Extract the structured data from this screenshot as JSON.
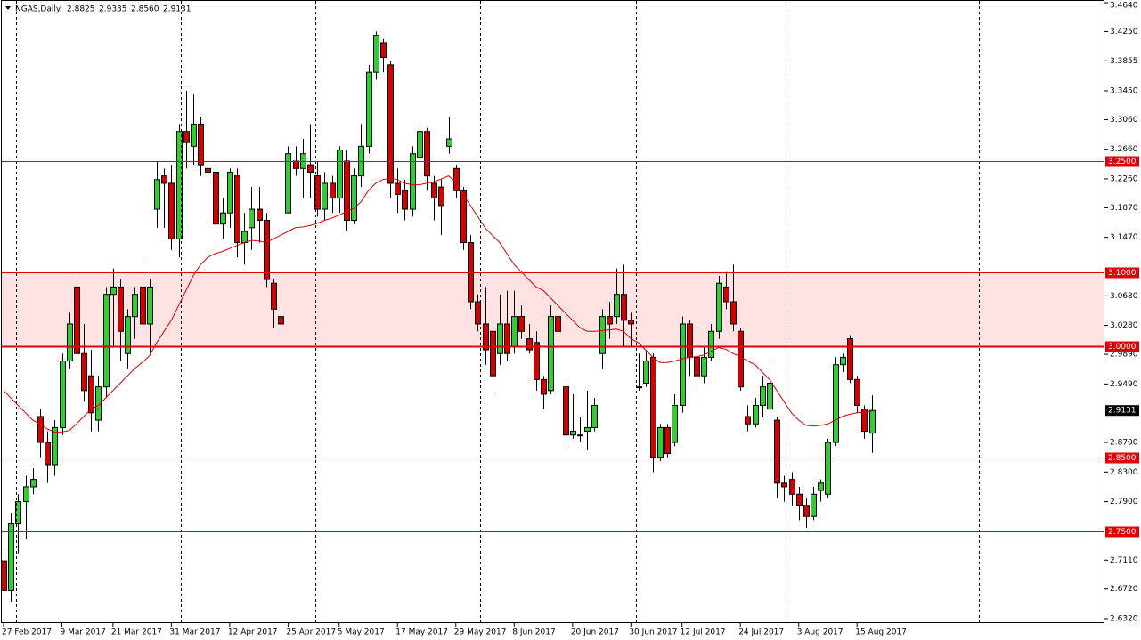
{
  "chart_data": {
    "type": "candlestick",
    "title": "NGAS,Daily",
    "header_values": [
      "2.8825",
      "2.9335",
      "2.8560",
      "2.9131"
    ],
    "bull_color": "#32cd32",
    "bear_color": "#d40000",
    "ma_color": "#e00000",
    "level_color": "#e00000",
    "zone_color": "#ffe2e2",
    "open": [
      2.71,
      2.67,
      2.76,
      2.79,
      2.81,
      2.905,
      2.87,
      2.84,
      2.89,
      2.98,
      3.08,
      2.99,
      2.96,
      2.9,
      2.945,
      3.07,
      3.08,
      2.99,
      3.04,
      3.08,
      3.03,
      3.185,
      3.23,
      3.22,
      3.145,
      3.29,
      3.27,
      3.3,
      3.24,
      3.235,
      3.165,
      3.18,
      3.23,
      3.14,
      3.16,
      3.185,
      3.17,
      3.085,
      3.04,
      3.18,
      3.25,
      3.24,
      3.245,
      3.23,
      3.185,
      3.22,
      3.2,
      3.25,
      3.17,
      3.23,
      3.27,
      3.37,
      3.41,
      3.38,
      3.22,
      3.21,
      3.185,
      3.255,
      3.29,
      3.22,
      3.215,
      3.27,
      3.24,
      3.21,
      3.14,
      3.06,
      3.03,
      3.02,
      2.99,
      3.03,
      3.0,
      3.04,
      3.01,
      3.005,
      2.955,
      2.94,
      3.04,
      2.945,
      2.88,
      2.88,
      2.885,
      2.89,
      2.99,
      3.04,
      3.04,
      3.07,
      3.035,
      2.945,
      2.95,
      2.985,
      2.85,
      2.89,
      2.87,
      2.92,
      3.03,
      2.985,
      2.96,
      2.985,
      3.02,
      3.08,
      3.06,
      3.02,
      2.905,
      2.895,
      2.92,
      2.915,
      2.9,
      2.815,
      2.82,
      2.8,
      2.785,
      2.77,
      2.805,
      2.8,
      2.87,
      2.975,
      3.01,
      2.955,
      2.915,
      2.8825
    ],
    "high": [
      2.72,
      2.775,
      2.8,
      2.825,
      2.835,
      2.915,
      2.885,
      2.9,
      2.99,
      3.045,
      3.085,
      3.03,
      2.995,
      2.96,
      3.08,
      3.105,
      3.09,
      3.05,
      3.08,
      3.12,
      3.09,
      3.25,
      3.24,
      3.245,
      3.3,
      3.345,
      3.34,
      3.31,
      3.245,
      3.245,
      3.2,
      3.24,
      3.24,
      3.18,
      3.215,
      3.215,
      3.18,
      3.09,
      3.05,
      3.27,
      3.27,
      3.28,
      3.3,
      3.25,
      3.235,
      3.23,
      3.27,
      3.265,
      3.24,
      3.3,
      3.38,
      3.425,
      3.415,
      3.385,
      3.24,
      3.225,
      3.27,
      3.295,
      3.295,
      3.23,
      3.225,
      3.31,
      3.245,
      3.215,
      3.15,
      3.07,
      3.08,
      3.03,
      3.07,
      3.075,
      3.075,
      3.055,
      3.03,
      3.02,
      2.96,
      3.055,
      3.05,
      2.95,
      2.935,
      2.905,
      2.94,
      2.93,
      3.05,
      3.06,
      3.105,
      3.11,
      3.045,
      2.99,
      2.995,
      2.99,
      2.895,
      2.895,
      2.935,
      3.04,
      3.035,
      2.995,
      3.0,
      3.03,
      3.095,
      3.1,
      3.11,
      3.025,
      2.92,
      2.93,
      2.96,
      2.98,
      2.905,
      2.825,
      2.83,
      2.81,
      2.795,
      2.81,
      2.82,
      2.875,
      2.985,
      2.99,
      3.015,
      2.96,
      2.92,
      2.9335
    ],
    "low": [
      2.65,
      2.655,
      2.72,
      2.74,
      2.8,
      2.85,
      2.815,
      2.825,
      2.88,
      2.97,
      2.975,
      2.925,
      2.885,
      2.885,
      2.93,
      3.0,
      2.98,
      2.97,
      3.01,
      3.02,
      2.99,
      3.16,
      3.16,
      3.13,
      3.12,
      3.24,
      3.245,
      3.23,
      3.22,
      3.14,
      3.145,
      3.16,
      3.12,
      3.11,
      3.13,
      3.14,
      3.08,
      3.025,
      3.02,
      3.18,
      3.23,
      3.2,
      3.2,
      3.175,
      3.17,
      3.18,
      3.18,
      3.155,
      3.165,
      3.215,
      3.26,
      3.36,
      3.37,
      3.2,
      3.18,
      3.17,
      3.175,
      3.25,
      3.21,
      3.17,
      3.15,
      3.26,
      3.2,
      3.13,
      3.05,
      3.02,
      2.975,
      2.935,
      2.975,
      2.98,
      2.99,
      3.01,
      2.99,
      2.94,
      2.915,
      2.935,
      3.015,
      2.87,
      2.875,
      2.87,
      2.86,
      2.885,
      2.97,
      3.01,
      3.03,
      3.0,
      3.0,
      2.94,
      2.945,
      2.83,
      2.845,
      2.85,
      2.865,
      2.91,
      2.96,
      2.945,
      2.95,
      2.98,
      3.01,
      3.05,
      3.02,
      2.94,
      2.885,
      2.89,
      2.905,
      2.91,
      2.795,
      2.79,
      2.785,
      2.765,
      2.755,
      2.765,
      2.79,
      2.795,
      2.865,
      2.965,
      2.95,
      2.91,
      2.875,
      2.856
    ],
    "close": [
      2.67,
      2.76,
      2.79,
      2.81,
      2.82,
      2.87,
      2.84,
      2.89,
      2.98,
      3.03,
      2.99,
      2.94,
      2.91,
      2.945,
      3.07,
      3.08,
      3.02,
      3.04,
      3.07,
      3.03,
      3.08,
      3.225,
      3.22,
      3.145,
      3.29,
      3.275,
      3.3,
      3.245,
      3.235,
      3.165,
      3.18,
      3.235,
      3.14,
      3.155,
      3.185,
      3.17,
      3.09,
      3.05,
      3.03,
      3.26,
      3.24,
      3.26,
      3.235,
      3.185,
      3.22,
      3.2,
      3.265,
      3.17,
      3.23,
      3.27,
      3.37,
      3.42,
      3.39,
      3.22,
      3.205,
      3.185,
      3.26,
      3.29,
      3.23,
      3.2,
      3.19,
      3.28,
      3.21,
      3.14,
      3.06,
      3.03,
      2.995,
      2.96,
      3.03,
      2.99,
      3.04,
      3.02,
      2.995,
      2.955,
      2.935,
      3.04,
      3.02,
      2.88,
      2.885,
      2.88,
      2.89,
      2.92,
      3.04,
      3.03,
      3.07,
      3.035,
      3.03,
      2.945,
      2.98,
      2.85,
      2.89,
      2.855,
      2.92,
      3.03,
      2.985,
      2.96,
      2.985,
      3.02,
      3.085,
      3.06,
      3.03,
      2.945,
      2.895,
      2.92,
      2.945,
      2.95,
      2.815,
      2.81,
      2.8,
      2.785,
      2.77,
      2.8,
      2.815,
      2.87,
      2.975,
      2.985,
      2.955,
      2.92,
      2.885,
      2.9131
    ],
    "ma_values": [
      2.94,
      2.93,
      2.92,
      2.91,
      2.9,
      2.895,
      2.888,
      2.884,
      2.884,
      2.886,
      2.895,
      2.905,
      2.915,
      2.92,
      2.93,
      2.94,
      2.95,
      2.96,
      2.97,
      2.978,
      2.987,
      3.005,
      3.02,
      3.035,
      3.055,
      3.075,
      3.095,
      3.11,
      3.12,
      3.125,
      3.128,
      3.132,
      3.136,
      3.14,
      3.143,
      3.142,
      3.14,
      3.145,
      3.15,
      3.155,
      3.16,
      3.161,
      3.163,
      3.166,
      3.17,
      3.173,
      3.177,
      3.182,
      3.186,
      3.195,
      3.21,
      3.22,
      3.225,
      3.227,
      3.225,
      3.22,
      3.218,
      3.218,
      3.22,
      3.222,
      3.226,
      3.23,
      3.222,
      3.205,
      3.19,
      3.175,
      3.16,
      3.15,
      3.14,
      3.125,
      3.11,
      3.1,
      3.09,
      3.08,
      3.075,
      3.065,
      3.055,
      3.045,
      3.035,
      3.025,
      3.02,
      3.02,
      3.021,
      3.022,
      3.023,
      3.02,
      3.01,
      3.005,
      2.995,
      2.985,
      2.978,
      2.978,
      2.98,
      2.983,
      2.985,
      2.986,
      2.988,
      2.993,
      2.998,
      2.996,
      2.99,
      2.986,
      2.98,
      2.975,
      2.965,
      2.955,
      2.94,
      2.925,
      2.91,
      2.9,
      2.893,
      2.892,
      2.893,
      2.895,
      2.9,
      2.905,
      2.908,
      2.91,
      2.911,
      2.912
    ],
    "last_price_label": "2.9131",
    "ylim": [
      2.632,
      3.464
    ],
    "yticks": [
      {
        "value": 3.464,
        "label": "3.4640"
      },
      {
        "value": 3.425,
        "label": "3.4250"
      },
      {
        "value": 3.3855,
        "label": "3.3855"
      },
      {
        "value": 3.345,
        "label": "3.3450"
      },
      {
        "value": 3.306,
        "label": "3.3060"
      },
      {
        "value": 3.266,
        "label": "3.2660"
      },
      {
        "value": 3.226,
        "label": "3.2260"
      },
      {
        "value": 3.187,
        "label": "3.1870"
      },
      {
        "value": 3.147,
        "label": "3.1470"
      },
      {
        "value": 3.068,
        "label": "3.0680"
      },
      {
        "value": 3.028,
        "label": "3.0280"
      },
      {
        "value": 2.989,
        "label": "2.9890"
      },
      {
        "value": 2.949,
        "label": "2.9490"
      },
      {
        "value": 2.87,
        "label": "2.8700"
      },
      {
        "value": 2.83,
        "label": "2.8300"
      },
      {
        "value": 2.79,
        "label": "2.7900"
      },
      {
        "value": 2.711,
        "label": "2.7110"
      },
      {
        "value": 2.672,
        "label": "2.6720"
      },
      {
        "value": 2.632,
        "label": "2.6320"
      }
    ],
    "levels": [
      {
        "value": 3.25,
        "label": "3.2500"
      },
      {
        "value": 3.1,
        "label": "3.1000"
      },
      {
        "value": 3.0,
        "label": "3.0000"
      },
      {
        "value": 2.85,
        "label": "2.8500"
      },
      {
        "value": 2.75,
        "label": "2.7500"
      }
    ],
    "zone": [
      3.0,
      3.1
    ],
    "xticks": [
      {
        "value": 0,
        "label": "27 Feb 2017"
      },
      {
        "value": 8,
        "label": "9 Mar 2017"
      },
      {
        "value": 15,
        "label": "21 Mar 2017"
      },
      {
        "value": 23,
        "label": "31 Mar 2017"
      },
      {
        "value": 31,
        "label": "12 Apr 2017"
      },
      {
        "value": 39,
        "label": "25 Apr 2017"
      },
      {
        "value": 46,
        "label": "5 May 2017"
      },
      {
        "value": 54,
        "label": "17 May 2017"
      },
      {
        "value": 62,
        "label": "29 May 2017"
      },
      {
        "value": 70,
        "label": "8 Jun 2017"
      },
      {
        "value": 78,
        "label": "20 Jun 2017"
      },
      {
        "value": 86,
        "label": "30 Jun 2017"
      },
      {
        "value": 93,
        "label": "12 Jul 2017"
      },
      {
        "value": 101,
        "label": "24 Jul 2017"
      },
      {
        "value": 109,
        "label": "3 Aug 2017"
      },
      {
        "value": 117,
        "label": "15 Aug 2017"
      }
    ]
  }
}
